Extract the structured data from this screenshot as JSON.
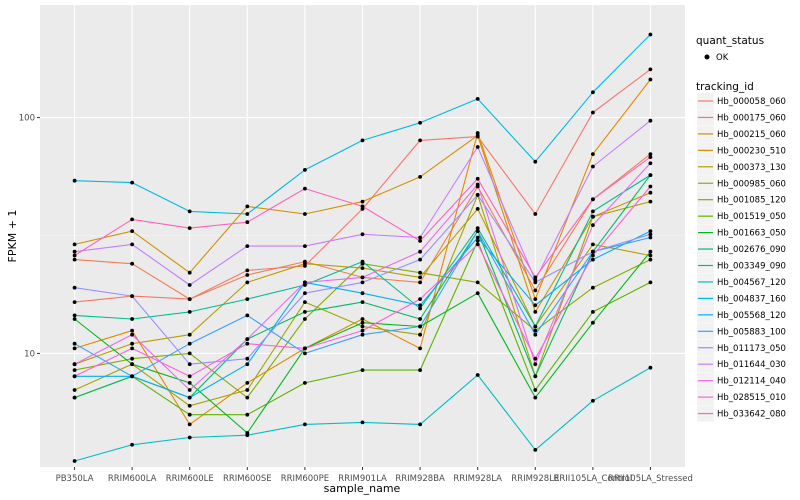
{
  "chart_data": {
    "type": "line",
    "xlabel": "sample_name",
    "ylabel": "FPKM + 1",
    "y_scale": "log10",
    "ylim": [
      3.3,
      300
    ],
    "y_ticks": [
      10,
      100
    ],
    "y_tick_labels": [
      "10",
      "100"
    ],
    "categories": [
      "PB350LA",
      "RRIM600LA",
      "RRIM600LE",
      "RRIM600SE",
      "RRIM600PE",
      "RRIM901LA",
      "RRIM928BA",
      "RRIM928LA",
      "RRIM928LE",
      "RRII105LA_Control",
      "RRII105LA_Stressed"
    ],
    "tick_labels": [
      "PB350LA",
      "RRIM600LA",
      "RRIM600LE",
      "RRIM600SE",
      "RRIM600PE",
      "RRIM901LA",
      "RRIM928BA",
      "RRIM928LA",
      "RRIM928LE",
      "RRII105LA_Control",
      "RRII105LA_Stressed"
    ],
    "grid": true,
    "legend_position": "right",
    "legends": [
      {
        "title": "quant_status",
        "items": [
          {
            "label": "OK",
            "shape": "point",
            "color": "#000000"
          }
        ]
      },
      {
        "title": "tracking_id"
      }
    ],
    "series": [
      {
        "name": "Hb_000058_060",
        "color": "#F8766D",
        "values": [
          16.5,
          17.5,
          17.0,
          22.5,
          23.5,
          41.0,
          80.0,
          83.0,
          39.0,
          105.0,
          160.0
        ]
      },
      {
        "name": "Hb_000175_060",
        "color": "#F07E4F",
        "values": [
          25.0,
          24.0,
          17.0,
          21.5,
          24.5,
          21.0,
          20.0,
          51.0,
          18.5,
          45.0,
          70.0
        ]
      },
      {
        "name": "Hb_000215_060",
        "color": "#E38900",
        "values": [
          10.5,
          12.5,
          5.0,
          7.5,
          10.5,
          14.0,
          10.5,
          86.0,
          17.0,
          70.0,
          145.0
        ]
      },
      {
        "name": "Hb_000230_510",
        "color": "#D29000",
        "values": [
          29.0,
          33.0,
          22.0,
          42.0,
          39.0,
          44.0,
          56.0,
          84.0,
          15.0,
          38.0,
          48.0
        ]
      },
      {
        "name": "Hb_000373_130",
        "color": "#BB9D00",
        "values": [
          9.0,
          11.0,
          12.0,
          20.0,
          24.0,
          23.0,
          21.0,
          41.0,
          13.0,
          29.0,
          26.0
        ]
      },
      {
        "name": "Hb_000985_060",
        "color": "#A3A500",
        "values": [
          7.0,
          9.0,
          6.0,
          7.0,
          16.5,
          13.0,
          12.0,
          47.0,
          8.0,
          38.0,
          44.0
        ]
      },
      {
        "name": "Hb_001085_120",
        "color": "#86AC00",
        "values": [
          8.5,
          9.5,
          10.0,
          6.5,
          14.0,
          24.0,
          22.0,
          20.0,
          12.5,
          19.0,
          25.0
        ]
      },
      {
        "name": "Hb_001519_050",
        "color": "#5EB300",
        "values": [
          6.5,
          8.0,
          5.5,
          5.5,
          7.5,
          8.5,
          8.5,
          30.0,
          7.0,
          15.0,
          20.0
        ]
      },
      {
        "name": "Hb_001663_050",
        "color": "#00B81F",
        "values": [
          14.0,
          9.0,
          7.5,
          4.6,
          10.5,
          13.5,
          13.0,
          18.0,
          6.5,
          13.5,
          27.0
        ]
      },
      {
        "name": "Hb_002676_090",
        "color": "#00BA68",
        "values": [
          6.5,
          8.0,
          6.5,
          11.5,
          15.0,
          16.5,
          14.0,
          33.0,
          8.0,
          27.0,
          57.0
        ]
      },
      {
        "name": "Hb_003349_090",
        "color": "#00BD96",
        "values": [
          14.5,
          14.0,
          15.0,
          17.0,
          19.5,
          24.5,
          15.5,
          34.0,
          13.0,
          40.0,
          57.0
        ]
      },
      {
        "name": "Hb_004567_120",
        "color": "#00BFC4",
        "values": [
          3.5,
          4.1,
          4.4,
          4.5,
          5.0,
          5.1,
          5.0,
          8.1,
          3.9,
          6.3,
          8.7
        ]
      },
      {
        "name": "Hb_004837_160",
        "color": "#00BADE",
        "values": [
          54.0,
          53.0,
          40.0,
          39.0,
          60.0,
          80.0,
          95.0,
          120.0,
          65.0,
          128.0,
          225.0
        ]
      },
      {
        "name": "Hb_005568_120",
        "color": "#00B0F6",
        "values": [
          8.0,
          8.0,
          6.5,
          9.0,
          20.0,
          18.0,
          16.0,
          31.0,
          16.0,
          25.0,
          33.0
        ]
      },
      {
        "name": "Hb_005883_100",
        "color": "#35A2FF",
        "values": [
          11.0,
          8.0,
          11.0,
          14.5,
          10.0,
          12.0,
          13.0,
          33.0,
          12.0,
          27.0,
          31.0
        ]
      },
      {
        "name": "Hb_011173_050",
        "color": "#9590FF",
        "values": [
          19.0,
          17.5,
          9.0,
          9.5,
          18.0,
          20.0,
          25.0,
          47.0,
          20.0,
          27.0,
          32.0
        ]
      },
      {
        "name": "Hb_011644_030",
        "color": "#C77CFF",
        "values": [
          27.0,
          29.0,
          19.5,
          28.5,
          28.5,
          32.0,
          31.0,
          75.0,
          20.5,
          62.0,
          97.0
        ]
      },
      {
        "name": "Hb_012114_040",
        "color": "#E76BF3",
        "values": [
          9.0,
          12.0,
          7.0,
          11.5,
          20.0,
          21.0,
          27.0,
          52.0,
          9.0,
          35.0,
          64.0
        ]
      },
      {
        "name": "Hb_028515_010",
        "color": "#FA62DB",
        "values": [
          8.0,
          10.5,
          8.0,
          11.0,
          10.5,
          12.5,
          17.0,
          29.0,
          9.5,
          26.0,
          51.0
        ]
      },
      {
        "name": "Hb_033642_080",
        "color": "#FF62BC",
        "values": [
          26.0,
          37.0,
          34.0,
          36.0,
          50.0,
          42.0,
          30.0,
          55.0,
          21.0,
          45.0,
          68.0
        ]
      }
    ]
  }
}
